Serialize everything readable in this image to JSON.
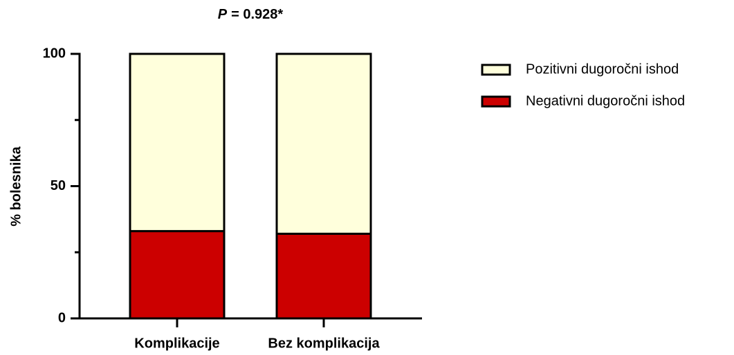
{
  "chart_data": {
    "type": "stacked_bar",
    "title": {
      "variable": "P",
      "text": "= 0.928*"
    },
    "ylabel": "% bolesnika",
    "categories": [
      "Komplikacije",
      "Bez komplikacija"
    ],
    "series": [
      {
        "name": "Pozitivni dugoročni ishod",
        "color": "#ffffdc",
        "values": [
          67,
          68
        ]
      },
      {
        "name": "Negativni dugoročni ishod",
        "color": "#cc0000",
        "values": [
          33,
          32
        ]
      }
    ],
    "ylim": [
      0,
      100
    ],
    "yticks": [
      0,
      50,
      100
    ],
    "yminor_ticks": [
      25,
      75
    ],
    "legend": "right"
  }
}
